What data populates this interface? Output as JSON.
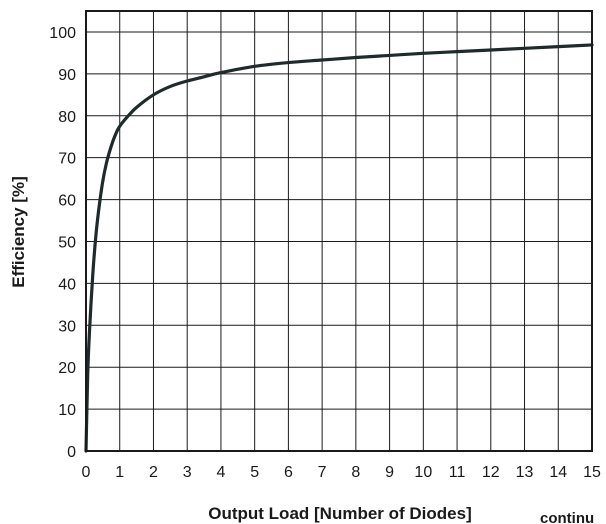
{
  "chart_data": {
    "type": "line",
    "xlabel": "Output Load [Number of Diodes]",
    "ylabel": "Efficiency [%]",
    "xlim": [
      0,
      15
    ],
    "ylim": [
      0,
      100
    ],
    "x_ticks": [
      "0",
      "1",
      "2",
      "3",
      "4",
      "5",
      "6",
      "7",
      "8",
      "9",
      "10",
      "11",
      "12",
      "13",
      "14",
      "15"
    ],
    "y_ticks": [
      "0",
      "10",
      "20",
      "30",
      "40",
      "50",
      "60",
      "70",
      "80",
      "90",
      "100"
    ],
    "grid": true,
    "series": [
      {
        "color": "#1f2b2b",
        "x": [
          0,
          0.05,
          0.1,
          0.2,
          0.3,
          0.4,
          0.5,
          0.6,
          0.7,
          0.8,
          0.9,
          1.0,
          1.2,
          1.5,
          2.0,
          2.5,
          3.0,
          3.5,
          4.0,
          5.0,
          6.0,
          7.0,
          8.0,
          9.0,
          10.0,
          11.0,
          12.0,
          13.0,
          14.0,
          15.0
        ],
        "y": [
          0,
          18,
          28,
          42,
          52,
          59,
          64.5,
          68.5,
          71.5,
          74,
          76,
          77.5,
          79.5,
          82,
          85,
          87,
          88.3,
          89.3,
          90.3,
          91.8,
          92.7,
          93.3,
          93.9,
          94.4,
          94.9,
          95.3,
          95.7,
          96.1,
          96.5,
          96.9
        ]
      }
    ]
  },
  "footer": {
    "cut_text": "continu"
  }
}
